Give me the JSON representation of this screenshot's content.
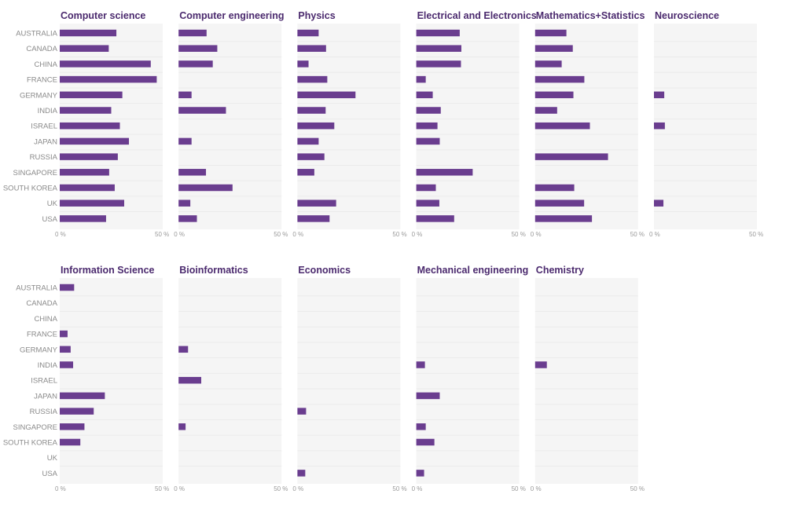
{
  "chart_data": {
    "type": "bar",
    "orientation": "horizontal",
    "categories": [
      "AUSTRALIA",
      "CANADA",
      "CHINA",
      "FRANCE",
      "GERMANY",
      "INDIA",
      "ISRAEL",
      "JAPAN",
      "RUSSIA",
      "SINGAPORE",
      "SOUTH KOREA",
      "UK",
      "USA"
    ],
    "x_range": [
      0,
      50
    ],
    "tick_labels": [
      "0 %",
      "50 %"
    ],
    "grid": true,
    "bar_color": "#6a3d8f",
    "panel_background": "#f5f5f5",
    "panels": [
      {
        "title": "Computer science",
        "values": [
          27.5,
          23.8,
          44.2,
          47.1,
          30.4,
          25.0,
          29.2,
          33.6,
          28.2,
          24.0,
          26.7,
          31.3,
          22.5
        ]
      },
      {
        "title": "Computer engineering",
        "values": [
          13.6,
          18.8,
          16.6,
          0,
          6.3,
          23.0,
          0,
          6.3,
          0,
          13.3,
          26.2,
          5.7,
          8.9
        ]
      },
      {
        "title": "Physics",
        "values": [
          10.3,
          13.9,
          5.4,
          14.5,
          28.2,
          13.7,
          17.9,
          10.3,
          13.1,
          8.2,
          0,
          18.8,
          15.6
        ]
      },
      {
        "title": "Electrical and Electronics",
        "values": [
          21.1,
          21.9,
          21.7,
          4.6,
          8.0,
          11.9,
          10.3,
          11.4,
          0,
          27.4,
          9.5,
          11.2,
          18.4
        ]
      },
      {
        "title": "Mathematics+Statistics",
        "values": [
          15.2,
          18.3,
          12.9,
          23.9,
          18.6,
          10.7,
          26.6,
          0,
          35.4,
          0,
          19.0,
          23.8,
          27.6
        ]
      },
      {
        "title": "Neuroscience",
        "values": [
          0,
          0,
          0,
          0,
          5.0,
          0,
          5.3,
          0,
          0,
          0,
          0,
          4.6,
          0
        ]
      },
      {
        "title": "Information Science",
        "values": [
          7.0,
          0,
          0,
          3.8,
          5.3,
          6.5,
          0,
          21.9,
          16.5,
          12.0,
          10.0,
          0,
          0
        ]
      },
      {
        "title": "Bioinformatics",
        "values": [
          0,
          0,
          0,
          0,
          4.6,
          0,
          11.0,
          0,
          0,
          3.4,
          0,
          0,
          0
        ]
      },
      {
        "title": "Economics",
        "values": [
          0,
          0,
          0,
          0,
          0,
          0,
          0,
          0,
          4.2,
          0,
          0,
          0,
          3.8
        ]
      },
      {
        "title": "Mechanical engineering",
        "values": [
          0,
          0,
          0,
          0,
          0,
          4.2,
          0,
          11.4,
          0,
          4.6,
          8.8,
          0,
          3.8
        ]
      },
      {
        "title": "Chemistry",
        "values": [
          0,
          0,
          0,
          0,
          0,
          5.7,
          0,
          0,
          0,
          0,
          0,
          0,
          0
        ]
      }
    ]
  }
}
